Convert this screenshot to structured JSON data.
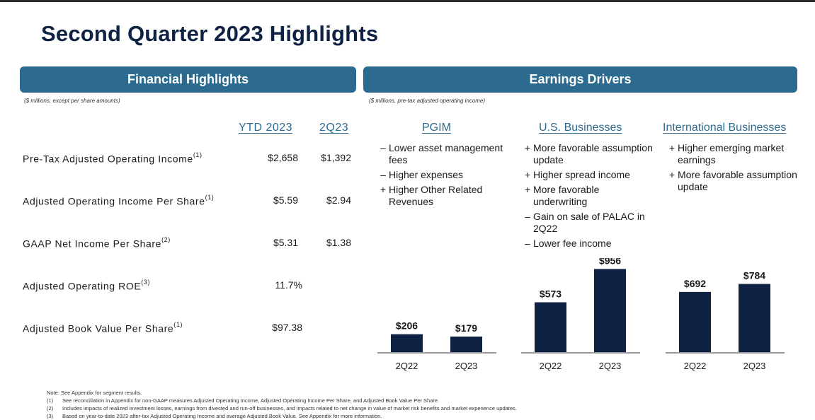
{
  "title": "Second Quarter 2023 Highlights",
  "financial": {
    "banner": "Financial Highlights",
    "note": "($ millions, except per share amounts)",
    "col_ytd": "YTD 2023",
    "col_q": "2Q23",
    "rows": [
      {
        "label": "Pre-Tax Adjusted Operating Income",
        "sup": "(1)",
        "ytd": "$2,658",
        "q": "$1,392"
      },
      {
        "label": "Adjusted Operating Income Per Share",
        "sup": "(1)",
        "ytd": "$5.59",
        "q": "$2.94"
      },
      {
        "label": "GAAP Net Income Per Share",
        "sup": "(2)",
        "ytd": "$5.31",
        "q": "$1.38"
      },
      {
        "label": "Adjusted Operating ROE",
        "sup": "(3)",
        "ytd": "11.7%",
        "q": ""
      },
      {
        "label": "Adjusted Book Value Per Share",
        "sup": "(1)",
        "ytd": "$97.38",
        "q": ""
      }
    ]
  },
  "earnings": {
    "banner": "Earnings Drivers",
    "note": "($ millions, pre-tax adjusted operating income)",
    "segments": [
      {
        "name": "PGIM",
        "bullets": [
          {
            "sym": "–",
            "text": "Lower asset management fees"
          },
          {
            "sym": "–",
            "text": "Higher expenses"
          },
          {
            "sym": "+",
            "text": "Higher Other Related Revenues"
          }
        ]
      },
      {
        "name": "U.S. Businesses",
        "bullets": [
          {
            "sym": "+",
            "text": "More favorable assumption update"
          },
          {
            "sym": "+",
            "text": "Higher spread income"
          },
          {
            "sym": "+",
            "text": "More favorable underwriting"
          },
          {
            "sym": "–",
            "text": "Gain on sale of PALAC in 2Q22"
          },
          {
            "sym": "–",
            "text": "Lower fee income"
          }
        ]
      },
      {
        "name": "International Businesses",
        "bullets": [
          {
            "sym": "+",
            "text": "Higher emerging market earnings"
          },
          {
            "sym": "+",
            "text": "More favorable assumption update"
          }
        ]
      }
    ]
  },
  "chart_data": [
    {
      "type": "bar",
      "title": "PGIM",
      "categories": [
        "2Q22",
        "2Q23"
      ],
      "values": [
        206,
        179
      ],
      "labels": [
        "$206",
        "$179"
      ],
      "ylim": [
        0,
        1000
      ]
    },
    {
      "type": "bar",
      "title": "U.S. Businesses",
      "categories": [
        "2Q22",
        "2Q23"
      ],
      "values": [
        573,
        956
      ],
      "labels": [
        "$573",
        "$956"
      ],
      "ylim": [
        0,
        1000
      ]
    },
    {
      "type": "bar",
      "title": "International Businesses",
      "categories": [
        "2Q22",
        "2Q23"
      ],
      "values": [
        692,
        784
      ],
      "labels": [
        "$692",
        "$784"
      ],
      "ylim": [
        0,
        1000
      ]
    }
  ],
  "colors": {
    "banner": "#2c6a8f",
    "title": "#0f2244",
    "bar": "#0f2244"
  },
  "footnotes": [
    {
      "num": "",
      "text": "Note: See Appendix for segment results."
    },
    {
      "num": "(1)",
      "text": "See reconciliation in Appendix for non-GAAP measures Adjusted Operating Income, Adjusted Operating Income Per Share, and Adjusted Book Value Per Share."
    },
    {
      "num": "(2)",
      "text": "Includes impacts of realized investment losses, earnings from divested and run-off businesses, and impacts related to net change in value of market risk benefits and market experience updates."
    },
    {
      "num": "(3)",
      "text": "Based on year-to-date 2023 after-tax Adjusted Operating Income and average Adjusted Book Value. See Appendix for more information."
    }
  ]
}
